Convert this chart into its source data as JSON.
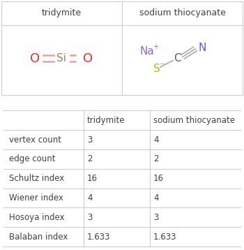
{
  "title1": "tridymite",
  "title2": "sodium thiocyanate",
  "rows": [
    [
      "vertex count",
      "3",
      "4"
    ],
    [
      "edge count",
      "2",
      "2"
    ],
    [
      "Schultz index",
      "16",
      "16"
    ],
    [
      "Wiener index",
      "4",
      "4"
    ],
    [
      "Hosoya index",
      "3",
      "3"
    ],
    [
      "Balaban index",
      "1.633",
      "1.633"
    ]
  ],
  "col_headers": [
    "",
    "tridymite",
    "sodium thiocyanate"
  ],
  "bg_color": "#ffffff",
  "text_color": "#404040",
  "line_color": "#cccccc",
  "tridymite_O_color": "#e03030",
  "tridymite_Si_color": "#a08060",
  "tridymite_bond_color": "#e8a0a0",
  "na_color": "#9966cc",
  "s_color": "#bbbb00",
  "c_color": "#606060",
  "n_color": "#5555ff",
  "bond_color": "#aaaaaa"
}
